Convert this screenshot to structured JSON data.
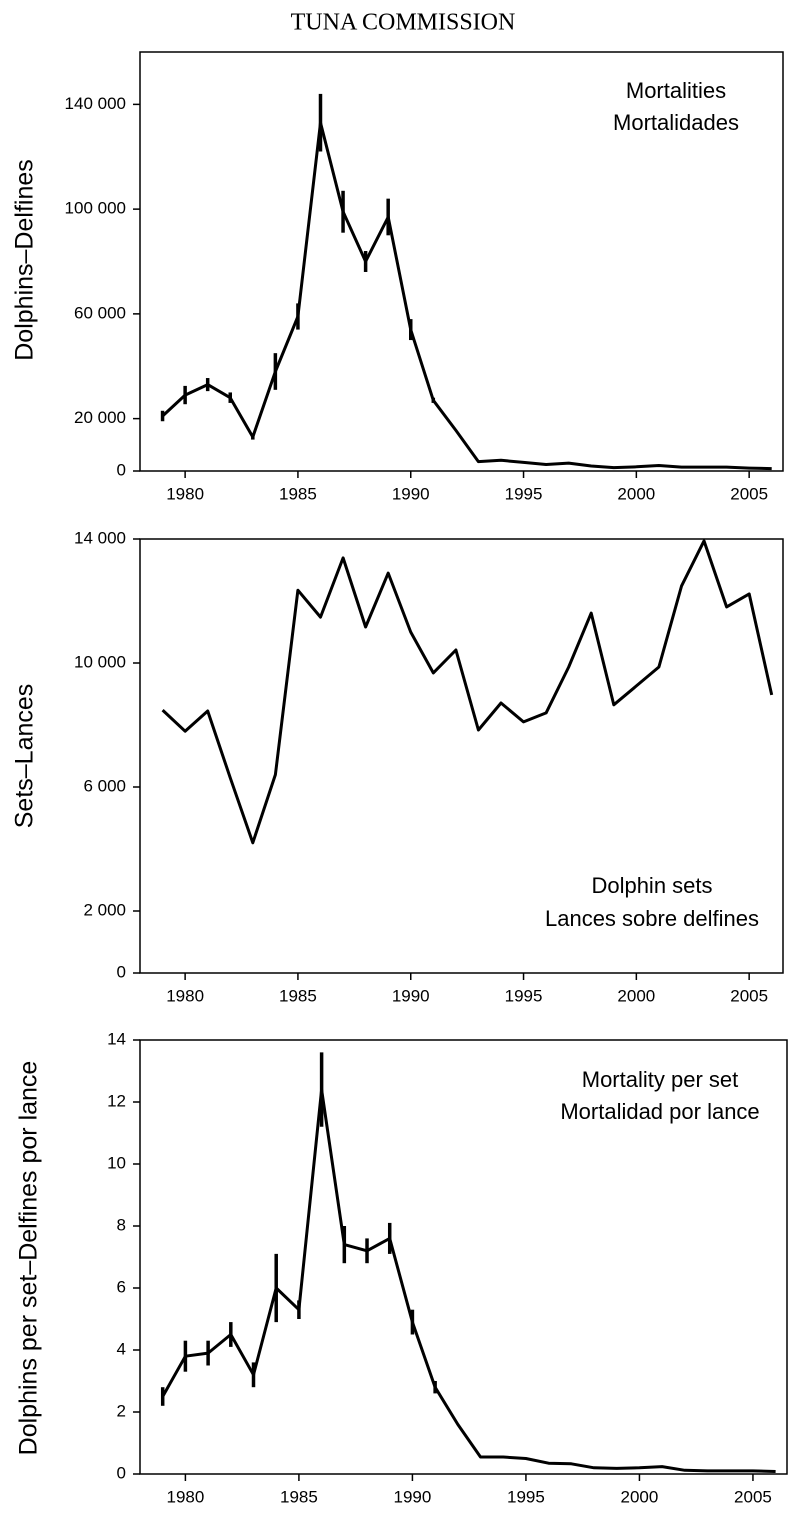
{
  "header": {
    "title": "TUNA COMMISSION"
  },
  "chart_data": [
    {
      "type": "line",
      "ylabel": "Dolphins–Delfines",
      "annotation": [
        "Mortalities",
        "Mortalidades"
      ],
      "x": [
        1979,
        1980,
        1981,
        1982,
        1983,
        1984,
        1985,
        1986,
        1987,
        1988,
        1989,
        1990,
        1991,
        1992,
        1993,
        1994,
        1995,
        1996,
        1997,
        1998,
        1999,
        2000,
        2001,
        2002,
        2003,
        2004,
        2005,
        2006
      ],
      "values": [
        21000,
        29000,
        33000,
        28000,
        13000,
        38000,
        59000,
        133000,
        99000,
        80000,
        97000,
        54000,
        27000,
        15500,
        3600,
        4100,
        3300,
        2500,
        3000,
        1900,
        1300,
        1600,
        2100,
        1500,
        1500,
        1500,
        1100,
        900
      ],
      "errors": [
        2000,
        3500,
        2500,
        2000,
        1000,
        7000,
        5000,
        11000,
        8000,
        4000,
        7000,
        4000,
        1000,
        null,
        null,
        null,
        null,
        null,
        null,
        null,
        null,
        null,
        null,
        null,
        null,
        null,
        null,
        null
      ],
      "color": "#000000",
      "xlim": [
        1978,
        2006.5
      ],
      "xticks": [
        1980,
        1985,
        1990,
        1995,
        2000,
        2005
      ],
      "ylim": [
        0,
        160000
      ],
      "yticks": [
        0,
        {
          "value": 20000,
          "label": "20 000"
        },
        {
          "value": 60000,
          "label": "60 000"
        },
        {
          "value": 100000,
          "label": "100 000"
        },
        {
          "value": 140000,
          "label": "140 000"
        }
      ]
    },
    {
      "type": "line",
      "ylabel": "Sets–Lances",
      "annotation": [
        "Dolphin sets",
        "Lances sobre delfines"
      ],
      "x": [
        1979,
        1980,
        1981,
        1982,
        1983,
        1984,
        1985,
        1986,
        1987,
        1988,
        1989,
        1990,
        1991,
        1992,
        1993,
        1994,
        1995,
        1996,
        1997,
        1998,
        1999,
        2000,
        2001,
        2002,
        2003,
        2004,
        2005,
        2006
      ],
      "values": [
        8480,
        7800,
        8450,
        6300,
        4200,
        6400,
        12350,
        11480,
        13390,
        11160,
        12900,
        11000,
        9680,
        10420,
        7840,
        8710,
        8100,
        8390,
        9870,
        11610,
        8650,
        9260,
        9870,
        12480,
        13940,
        11810,
        12230,
        8970
      ],
      "color": "#000000",
      "xlim": [
        1978,
        2006.5
      ],
      "xticks": [
        1980,
        1985,
        1990,
        1995,
        2000,
        2005
      ],
      "ylim": [
        0,
        14000
      ],
      "yticks": [
        0,
        {
          "value": 2000,
          "label": "2 000"
        },
        {
          "value": 6000,
          "label": "6 000"
        },
        {
          "value": 10000,
          "label": "10 000"
        },
        {
          "value": 14000,
          "label": "14 000"
        }
      ]
    },
    {
      "type": "line",
      "ylabel": "Dolphins per set–Delfines por lance",
      "annotation": [
        "Mortality per set",
        "Mortalidad por lance"
      ],
      "x": [
        1979,
        1980,
        1981,
        1982,
        1983,
        1984,
        1985,
        1986,
        1987,
        1988,
        1989,
        1990,
        1991,
        1992,
        1993,
        1994,
        1995,
        1996,
        1997,
        1998,
        1999,
        2000,
        2001,
        2002,
        2003,
        2004,
        2005,
        2006
      ],
      "values": [
        2.5,
        3.8,
        3.9,
        4.5,
        3.2,
        6.0,
        5.3,
        12.4,
        7.4,
        7.2,
        7.6,
        4.9,
        2.8,
        1.6,
        0.55,
        0.55,
        0.5,
        0.35,
        0.33,
        0.2,
        0.18,
        0.2,
        0.24,
        0.12,
        0.1,
        0.1,
        0.1,
        0.08
      ],
      "errors": [
        0.3,
        0.5,
        0.4,
        0.4,
        0.4,
        1.1,
        0.3,
        1.2,
        0.6,
        0.4,
        0.5,
        0.4,
        0.2,
        null,
        null,
        null,
        null,
        null,
        null,
        null,
        null,
        null,
        null,
        null,
        null,
        null,
        null,
        null
      ],
      "color": "#000000",
      "xlim": [
        1978,
        2006.5
      ],
      "xticks": [
        1980,
        1985,
        1990,
        1995,
        2000,
        2005
      ],
      "ylim": [
        0,
        14
      ],
      "yticks": [
        0,
        2,
        4,
        6,
        8,
        10,
        12,
        14
      ]
    }
  ]
}
